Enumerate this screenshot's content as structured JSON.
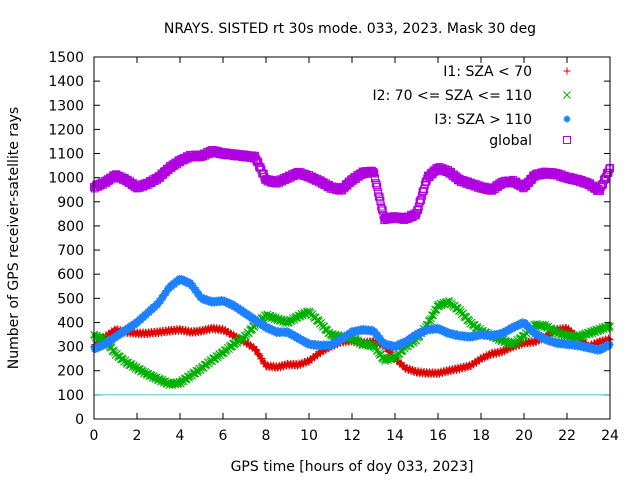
{
  "chart_data": {
    "type": "scatter",
    "title": "NRAYS. SISTED rt 30s mode. 033, 2023. Mask 30 deg",
    "xlabel": "GPS time [hours of doy 033, 2023]",
    "ylabel": "Number of GPS receiver-satellite rays",
    "xlim": [
      0,
      24
    ],
    "ylim": [
      0,
      1500
    ],
    "x_ticks": [
      "0",
      "2",
      "4",
      "6",
      "8",
      "10",
      "12",
      "14",
      "16",
      "18",
      "20",
      "22",
      "24"
    ],
    "y_ticks": [
      "0",
      "100",
      "200",
      "300",
      "400",
      "500",
      "600",
      "700",
      "800",
      "900",
      "1000",
      "1100",
      "1200",
      "1300",
      "1400",
      "1500"
    ],
    "legend_position": "top-right",
    "reference_line": {
      "y": 100,
      "color": "#33ccdd"
    },
    "series": [
      {
        "name": "I1: SZA < 70",
        "marker": "+",
        "color": "#e00000",
        "x": [
          0,
          0.5,
          1,
          1.5,
          2,
          2.5,
          3,
          3.5,
          4,
          4.5,
          5,
          5.5,
          6,
          6.5,
          7,
          7.5,
          8,
          8.5,
          9,
          9.5,
          10,
          10.5,
          11,
          11.5,
          12,
          12.5,
          13,
          13.5,
          14,
          14.5,
          15,
          15.5,
          16,
          16.5,
          17,
          17.5,
          18,
          18.5,
          19,
          19.5,
          20,
          20.5,
          21,
          21.5,
          22,
          22.5,
          23,
          23.5,
          24
        ],
        "values": [
          300,
          340,
          370,
          360,
          355,
          355,
          360,
          365,
          370,
          360,
          365,
          375,
          370,
          345,
          320,
          290,
          220,
          215,
          225,
          225,
          240,
          275,
          300,
          320,
          325,
          315,
          320,
          305,
          250,
          210,
          195,
          190,
          190,
          200,
          210,
          220,
          250,
          270,
          280,
          300,
          315,
          320,
          340,
          370,
          375,
          340,
          300,
          320,
          330
        ]
      },
      {
        "name": "I2: 70 <= SZA <= 110",
        "marker": "x",
        "color": "#00b000",
        "x": [
          0,
          0.5,
          1,
          1.5,
          2,
          2.5,
          3,
          3.5,
          4,
          4.5,
          5,
          5.5,
          6,
          6.5,
          7,
          7.5,
          8,
          8.5,
          9,
          9.5,
          10,
          10.5,
          11,
          11.5,
          12,
          12.5,
          13,
          13.5,
          14,
          14.5,
          15,
          15.5,
          16,
          16.5,
          17,
          17.5,
          18,
          18.5,
          19,
          19.5,
          20,
          20.5,
          21,
          21.5,
          22,
          22.5,
          23,
          23.5,
          24
        ],
        "values": [
          345,
          330,
          270,
          235,
          210,
          185,
          165,
          145,
          150,
          180,
          210,
          245,
          275,
          310,
          340,
          390,
          430,
          415,
          400,
          425,
          445,
          400,
          350,
          340,
          335,
          310,
          305,
          245,
          255,
          300,
          330,
          390,
          470,
          485,
          450,
          400,
          365,
          345,
          325,
          310,
          345,
          390,
          385,
          360,
          345,
          340,
          355,
          370,
          385
        ]
      },
      {
        "name": "I3: SZA > 110",
        "marker": "*",
        "color": "#1e80ff",
        "x": [
          0,
          0.5,
          1,
          1.5,
          2,
          2.5,
          3,
          3.5,
          4,
          4.5,
          5,
          5.5,
          6,
          6.5,
          7,
          7.5,
          8,
          8.5,
          9,
          9.5,
          10,
          10.5,
          11,
          11.5,
          12,
          12.5,
          13,
          13.5,
          14,
          14.5,
          15,
          15.5,
          16,
          16.5,
          17,
          17.5,
          18,
          18.5,
          19,
          19.5,
          20,
          20.5,
          21,
          21.5,
          22,
          22.5,
          23,
          23.5,
          24
        ],
        "values": [
          290,
          310,
          340,
          370,
          400,
          440,
          480,
          545,
          580,
          560,
          500,
          485,
          490,
          470,
          440,
          410,
          380,
          360,
          360,
          335,
          310,
          305,
          305,
          330,
          360,
          370,
          365,
          310,
          300,
          320,
          350,
          370,
          375,
          355,
          345,
          340,
          350,
          345,
          355,
          380,
          400,
          355,
          330,
          315,
          310,
          305,
          295,
          285,
          310
        ]
      },
      {
        "name": "global",
        "marker": "square",
        "color": "#b000e0",
        "x": [
          0,
          0.5,
          1,
          1.5,
          2,
          2.5,
          3,
          3.5,
          4,
          4.5,
          5,
          5.5,
          6,
          6.5,
          7,
          7.5,
          8,
          8.5,
          9,
          9.5,
          10,
          10.5,
          11,
          11.5,
          12,
          12.5,
          13,
          13.5,
          14,
          14.5,
          15,
          15.5,
          16,
          16.5,
          17,
          17.5,
          18,
          18.5,
          19,
          19.5,
          20,
          20.5,
          21,
          21.5,
          22,
          22.5,
          23,
          23.5,
          24
        ],
        "values": [
          960,
          980,
          1010,
          990,
          960,
          975,
          1000,
          1040,
          1070,
          1090,
          1090,
          1110,
          1100,
          1095,
          1090,
          1085,
          990,
          980,
          1000,
          1020,
          1005,
          985,
          960,
          950,
          990,
          1020,
          1025,
          830,
          835,
          830,
          850,
          1000,
          1040,
          1025,
          990,
          975,
          960,
          950,
          980,
          985,
          960,
          1010,
          1020,
          1015,
          1000,
          990,
          975,
          945,
          1040
        ]
      }
    ]
  }
}
